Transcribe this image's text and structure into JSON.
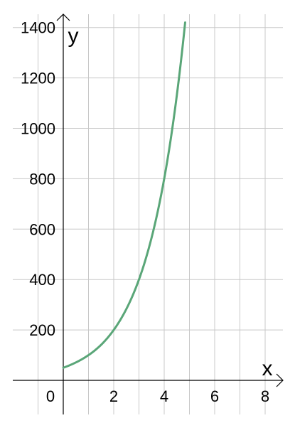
{
  "chart_data": {
    "type": "line",
    "xlabel": "x",
    "ylabel": "y",
    "xlim": [
      -2.5,
      8.6
    ],
    "ylim": [
      -130,
      1450
    ],
    "x_ticks": [
      0,
      2,
      4,
      6,
      8
    ],
    "x_tick_labels": [
      "0",
      "2",
      "4",
      "6",
      "8"
    ],
    "y_ticks": [
      200,
      400,
      600,
      800,
      1000,
      1200,
      1400
    ],
    "y_tick_labels": [
      "200",
      "400",
      "600",
      "800",
      "1000",
      "1200",
      "1400"
    ],
    "grid": true,
    "series": [
      {
        "color": "#5aa678",
        "x": [
          0,
          0.5,
          1,
          1.5,
          2,
          2.5,
          3,
          3.5,
          4,
          4.5,
          4.83
        ],
        "y": [
          50,
          71,
          100,
          141,
          200,
          283,
          400,
          566,
          800,
          1131,
          1420
        ]
      }
    ]
  }
}
